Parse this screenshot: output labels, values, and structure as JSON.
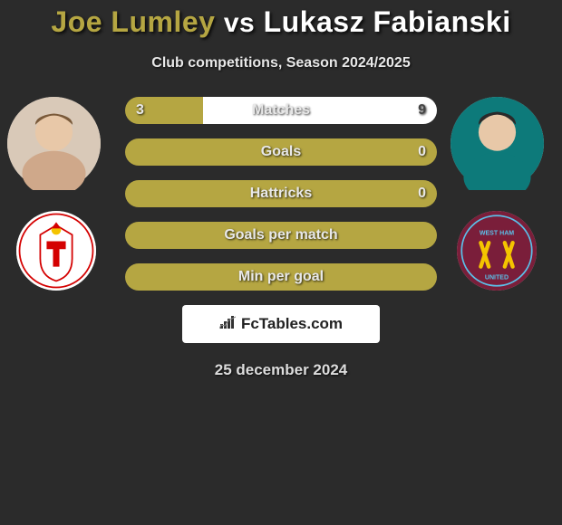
{
  "title": {
    "player_a": "Joe Lumley",
    "vs": "vs",
    "player_b": "Lukasz Fabianski"
  },
  "subtitle": "Club competitions, Season 2024/2025",
  "colors": {
    "left": "#b5a642",
    "right": "#ffffff",
    "bg": "#2b2b2b",
    "bar_bg": "#333333"
  },
  "bars": [
    {
      "label": "Matches",
      "left_val": "3",
      "right_val": "9",
      "left_pct": 25,
      "right_pct": 75
    },
    {
      "label": "Goals",
      "left_val": "",
      "right_val": "0",
      "left_pct": 100,
      "right_pct": 0
    },
    {
      "label": "Hattricks",
      "left_val": "",
      "right_val": "0",
      "left_pct": 100,
      "right_pct": 0
    },
    {
      "label": "Goals per match",
      "left_val": "",
      "right_val": "",
      "left_pct": 100,
      "right_pct": 0
    },
    {
      "label": "Min per goal",
      "left_val": "",
      "right_val": "",
      "left_pct": 100,
      "right_pct": 0
    }
  ],
  "logo_text": "FcTables.com",
  "date": "25 december 2024",
  "avatars": {
    "left_player": "joe-lumley-photo",
    "right_player": "lukasz-fabianski-photo",
    "left_club": "southampton-crest",
    "right_club": "west-ham-crest"
  }
}
